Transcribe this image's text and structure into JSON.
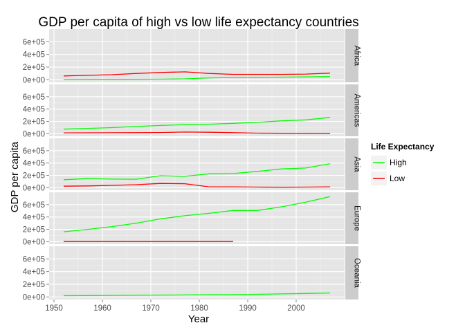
{
  "chart_data": {
    "type": "line",
    "title": "GDP per capita of high vs low life expectancy countries",
    "xlabel": "Year",
    "ylabel": "GDP per capita",
    "xlim": [
      1949,
      2010
    ],
    "ylim": [
      -40000,
      800000
    ],
    "x_ticks": [
      1950,
      1960,
      1970,
      1980,
      1990,
      2000
    ],
    "y_ticks": [
      0,
      200000,
      400000,
      600000
    ],
    "y_tick_labels": [
      "0e+00",
      "2e+05",
      "4e+05",
      "6e+05"
    ],
    "grid": true,
    "legend": {
      "title": "Life Expectancy",
      "position": "right",
      "entries": [
        {
          "name": "High",
          "color": "#00ff00"
        },
        {
          "name": "Low",
          "color": "#ff0000"
        }
      ]
    },
    "facets": [
      {
        "name": "Africa",
        "series": [
          {
            "name": "High",
            "color": "#00ff00",
            "x": [
              1952,
              1957,
              1962,
              1967,
              1972,
              1977,
              1982,
              1987,
              1992,
              1997,
              2002,
              2007
            ],
            "y": [
              5000,
              5500,
              6000,
              7000,
              9000,
              15000,
              30000,
              35000,
              38000,
              42000,
              45000,
              52000
            ]
          },
          {
            "name": "Low",
            "color": "#ff0000",
            "x": [
              1952,
              1957,
              1962,
              1967,
              1972,
              1977,
              1982,
              1987,
              1992,
              1997,
              2002,
              2007
            ],
            "y": [
              60000,
              70000,
              80000,
              100000,
              115000,
              125000,
              100000,
              85000,
              85000,
              85000,
              90000,
              105000
            ]
          }
        ]
      },
      {
        "name": "Americas",
        "series": [
          {
            "name": "High",
            "color": "#00ff00",
            "x": [
              1952,
              1957,
              1962,
              1967,
              1972,
              1977,
              1982,
              1987,
              1992,
              1997,
              2002,
              2007
            ],
            "y": [
              75000,
              88000,
              100000,
              118000,
              135000,
              148000,
              155000,
              170000,
              185000,
              210000,
              225000,
              265000
            ]
          },
          {
            "name": "Low",
            "color": "#ff0000",
            "x": [
              1952,
              1957,
              1962,
              1967,
              1972,
              1977,
              1982,
              1987,
              1992,
              1997,
              2002,
              2007
            ],
            "y": [
              15000,
              16000,
              17000,
              18000,
              20000,
              28000,
              25000,
              18000,
              10000,
              8000,
              7000,
              7000
            ]
          }
        ]
      },
      {
        "name": "Asia",
        "series": [
          {
            "name": "High",
            "color": "#00ff00",
            "x": [
              1952,
              1957,
              1962,
              1967,
              1972,
              1977,
              1982,
              1987,
              1992,
              1997,
              2002,
              2007
            ],
            "y": [
              130000,
              148000,
              140000,
              138000,
              195000,
              185000,
              225000,
              230000,
              265000,
              305000,
              320000,
              390000
            ]
          },
          {
            "name": "Low",
            "color": "#ff0000",
            "x": [
              1952,
              1957,
              1962,
              1967,
              1972,
              1977,
              1982,
              1987,
              1992,
              1997,
              2002,
              2007
            ],
            "y": [
              25000,
              30000,
              38000,
              50000,
              70000,
              65000,
              15000,
              15000,
              10000,
              8000,
              10000,
              15000
            ]
          }
        ]
      },
      {
        "name": "Europe",
        "series": [
          {
            "name": "High",
            "color": "#00ff00",
            "x": [
              1952,
              1957,
              1962,
              1967,
              1972,
              1977,
              1982,
              1987,
              1992,
              1997,
              2002,
              2007
            ],
            "y": [
              160000,
              200000,
              245000,
              300000,
              370000,
              420000,
              460000,
              505000,
              505000,
              565000,
              640000,
              730000
            ]
          },
          {
            "name": "Low",
            "color": "#ff0000",
            "x": [
              1952,
              1957,
              1962,
              1967,
              1972,
              1977,
              1982,
              1987
            ],
            "y": [
              3000,
              3000,
              3000,
              3000,
              3000,
              3000,
              3000,
              3000
            ]
          }
        ]
      },
      {
        "name": "Oceania",
        "series": [
          {
            "name": "High",
            "color": "#00ff00",
            "x": [
              1952,
              1957,
              1962,
              1967,
              1972,
              1977,
              1982,
              1987,
              1992,
              1997,
              2002,
              2007
            ],
            "y": [
              20000,
              22000,
              24000,
              26000,
              30000,
              32000,
              36000,
              38000,
              42000,
              48000,
              55000,
              62000
            ]
          }
        ]
      }
    ]
  }
}
